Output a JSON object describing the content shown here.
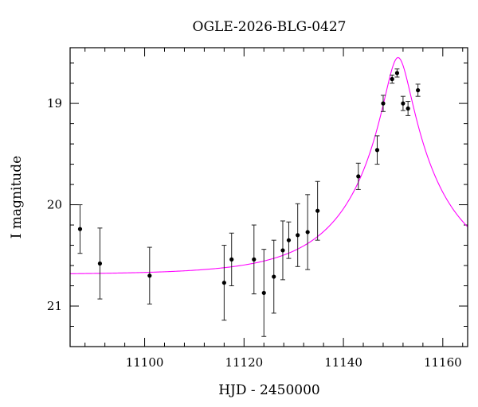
{
  "chart_data": {
    "type": "scatter",
    "title": "OGLE-2026-BLG-0427",
    "xlabel": "HJD - 2450000",
    "ylabel": "I magnitude",
    "xlim": [
      11085,
      11165
    ],
    "ylim": [
      21.4,
      18.45
    ],
    "y_inverted": true,
    "grid": false,
    "x_ticks": [
      11100,
      11120,
      11140,
      11160
    ],
    "y_ticks": [
      19,
      20,
      21
    ],
    "x_tick_labels": [
      "11100",
      "11120",
      "11140",
      "11160"
    ],
    "y_tick_labels": [
      "19",
      "20",
      "21"
    ],
    "colors": {
      "data": "#000000",
      "model": "#ff00ff"
    },
    "series": [
      {
        "points": [
          {
            "x": 11087.0,
            "y": 20.24,
            "err": 0.24
          },
          {
            "x": 11091.0,
            "y": 20.58,
            "err": 0.35
          },
          {
            "x": 11101.0,
            "y": 20.7,
            "err": 0.28
          },
          {
            "x": 11116.0,
            "y": 20.77,
            "err": 0.37
          },
          {
            "x": 11117.5,
            "y": 20.54,
            "err": 0.26
          },
          {
            "x": 11122.0,
            "y": 20.54,
            "err": 0.34
          },
          {
            "x": 11124.0,
            "y": 20.87,
            "err": 0.43
          },
          {
            "x": 11126.0,
            "y": 20.71,
            "err": 0.36
          },
          {
            "x": 11127.8,
            "y": 20.45,
            "err": 0.29
          },
          {
            "x": 11129.0,
            "y": 20.35,
            "err": 0.18
          },
          {
            "x": 11130.8,
            "y": 20.3,
            "err": 0.31
          },
          {
            "x": 11132.8,
            "y": 20.27,
            "err": 0.37
          },
          {
            "x": 11134.8,
            "y": 20.06,
            "err": 0.29
          },
          {
            "x": 11143.0,
            "y": 19.72,
            "err": 0.13
          },
          {
            "x": 11146.8,
            "y": 19.46,
            "err": 0.14
          },
          {
            "x": 11148.0,
            "y": 19.0,
            "err": 0.08
          },
          {
            "x": 11149.8,
            "y": 18.76,
            "err": 0.04
          },
          {
            "x": 11150.8,
            "y": 18.7,
            "err": 0.04
          },
          {
            "x": 11152.0,
            "y": 19.0,
            "err": 0.07
          },
          {
            "x": 11153.0,
            "y": 19.05,
            "err": 0.07
          },
          {
            "x": 11155.0,
            "y": 18.87,
            "err": 0.06
          }
        ]
      }
    ],
    "model": {
      "type": "pspl",
      "baseline": 20.69,
      "t0": 11151.0,
      "tE": 18.0,
      "u0": 0.14
    }
  }
}
